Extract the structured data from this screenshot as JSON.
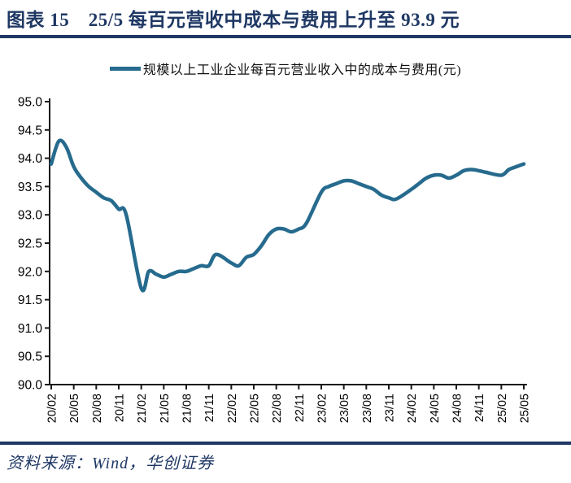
{
  "page": {
    "title": "图表 15　25/5 每百元营收中成本与费用上升至 93.9 元"
  },
  "legend": {
    "label": "规模以上工业企业每百元营业收入中的成本与费用(元)"
  },
  "source": {
    "text": "资料来源：Wind，华创证券"
  },
  "colors": {
    "navy": "#1F3864",
    "line": "#266B8E",
    "axis": "#1a1a1a",
    "tick_text": "#000000"
  },
  "chart_data": {
    "type": "line",
    "title": "图表 15　25/5 每百元营收中成本与费用上升至 93.9 元",
    "xlabel": "",
    "ylabel": "",
    "legend_position": "top-center",
    "grid": false,
    "smoothed": true,
    "y_axis": {
      "min": 90.0,
      "max": 95.0,
      "step": 0.5,
      "tick_labels": [
        "95.0",
        "94.5",
        "94.0",
        "93.5",
        "93.0",
        "92.5",
        "92.0",
        "91.5",
        "91.0",
        "90.5",
        "90.0"
      ]
    },
    "x_axis": {
      "tick_labels": [
        "20/02",
        "20/05",
        "20/08",
        "20/11",
        "21/02",
        "21/05",
        "21/08",
        "21/11",
        "22/02",
        "22/05",
        "22/08",
        "22/11",
        "23/02",
        "23/05",
        "23/08",
        "23/11",
        "24/02",
        "24/05",
        "24/08",
        "24/11",
        "25/02",
        "25/05"
      ]
    },
    "series": [
      {
        "name": "规模以上工业企业每百元营业收入中的成本与费用(元)",
        "x": [
          "20/02",
          "20/03",
          "20/04",
          "20/05",
          "20/06",
          "20/07",
          "20/08",
          "20/09",
          "20/10",
          "20/11",
          "20/12",
          "21/02",
          "21/03",
          "21/04",
          "21/05",
          "21/06",
          "21/07",
          "21/08",
          "21/09",
          "21/10",
          "21/11",
          "21/12",
          "22/02",
          "22/03",
          "22/04",
          "22/05",
          "22/06",
          "22/07",
          "22/08",
          "22/09",
          "22/10",
          "22/11",
          "22/12",
          "23/02",
          "23/03",
          "23/04",
          "23/05",
          "23/06",
          "23/07",
          "23/08",
          "23/09",
          "23/10",
          "23/11",
          "23/12",
          "24/02",
          "24/03",
          "24/04",
          "24/05",
          "24/06",
          "24/07",
          "24/08",
          "24/09",
          "24/10",
          "24/11",
          "24/12",
          "25/02",
          "25/03",
          "25/04",
          "25/05"
        ],
        "values": [
          93.9,
          94.3,
          94.2,
          93.85,
          93.65,
          93.5,
          93.4,
          93.3,
          93.25,
          93.1,
          93.0,
          91.7,
          92.0,
          91.95,
          91.9,
          91.95,
          92.0,
          92.0,
          92.05,
          92.1,
          92.1,
          92.3,
          92.15,
          92.1,
          92.25,
          92.3,
          92.45,
          92.65,
          92.75,
          92.75,
          92.7,
          92.75,
          92.85,
          93.4,
          93.5,
          93.55,
          93.6,
          93.6,
          93.55,
          93.5,
          93.45,
          93.35,
          93.3,
          93.28,
          93.45,
          93.55,
          93.65,
          93.7,
          93.7,
          93.65,
          93.7,
          93.78,
          93.8,
          93.78,
          93.75,
          93.7,
          93.8,
          93.85,
          93.9
        ]
      }
    ]
  }
}
